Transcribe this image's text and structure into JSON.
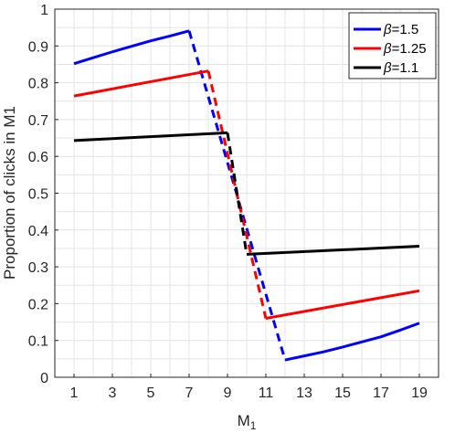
{
  "chart_data": {
    "type": "line",
    "xlabel": "M",
    "xlabel_sub": "1",
    "ylabel": "Proportion of clicks in M1",
    "xlim": [
      0,
      20
    ],
    "ylim": [
      0,
      1
    ],
    "xticks": [
      1,
      3,
      5,
      7,
      9,
      11,
      13,
      15,
      17,
      19
    ],
    "yticks": [
      0,
      0.1,
      0.2,
      0.3,
      0.4,
      0.5,
      0.6,
      0.7,
      0.8,
      0.9,
      1
    ],
    "ytick_labels": [
      "0",
      "0.1",
      "0.2",
      "0.3",
      "0.4",
      "0.5",
      "0.6",
      "0.7",
      "0.8",
      "0.9",
      "1"
    ],
    "grid": true,
    "legend_position": "top-right",
    "series": [
      {
        "name": "β=1.5",
        "legend_symbol": "β",
        "legend_value": "=1.5",
        "color": "#0000ff",
        "solid_left": [
          [
            1,
            0.852
          ],
          [
            2,
            0.868
          ],
          [
            3,
            0.884
          ],
          [
            4,
            0.899
          ],
          [
            5,
            0.914
          ],
          [
            6,
            0.927
          ],
          [
            7,
            0.941
          ]
        ],
        "dashed": [
          [
            7,
            0.941
          ],
          [
            12,
            0.047
          ]
        ],
        "solid_right": [
          [
            12,
            0.047
          ],
          [
            13,
            0.058
          ],
          [
            14,
            0.069
          ],
          [
            15,
            0.082
          ],
          [
            16,
            0.096
          ],
          [
            17,
            0.11
          ],
          [
            18,
            0.128
          ],
          [
            19,
            0.147
          ]
        ]
      },
      {
        "name": "β=1.25",
        "legend_symbol": "β",
        "legend_value": "=1.25",
        "color": "#ff0000",
        "solid_left": [
          [
            1,
            0.764
          ],
          [
            8,
            0.832
          ]
        ],
        "dashed": [
          [
            8,
            0.832
          ],
          [
            11,
            0.16
          ]
        ],
        "solid_right": [
          [
            11,
            0.16
          ],
          [
            19,
            0.235
          ]
        ]
      },
      {
        "name": "β=1.1",
        "legend_symbol": "β",
        "legend_value": "=1.1",
        "color": "#000000",
        "solid_left": [
          [
            1,
            0.643
          ],
          [
            9,
            0.664
          ]
        ],
        "dashed": [
          [
            9,
            0.664
          ],
          [
            10,
            0.334
          ]
        ],
        "solid_right": [
          [
            10,
            0.334
          ],
          [
            19,
            0.356
          ]
        ]
      }
    ]
  }
}
